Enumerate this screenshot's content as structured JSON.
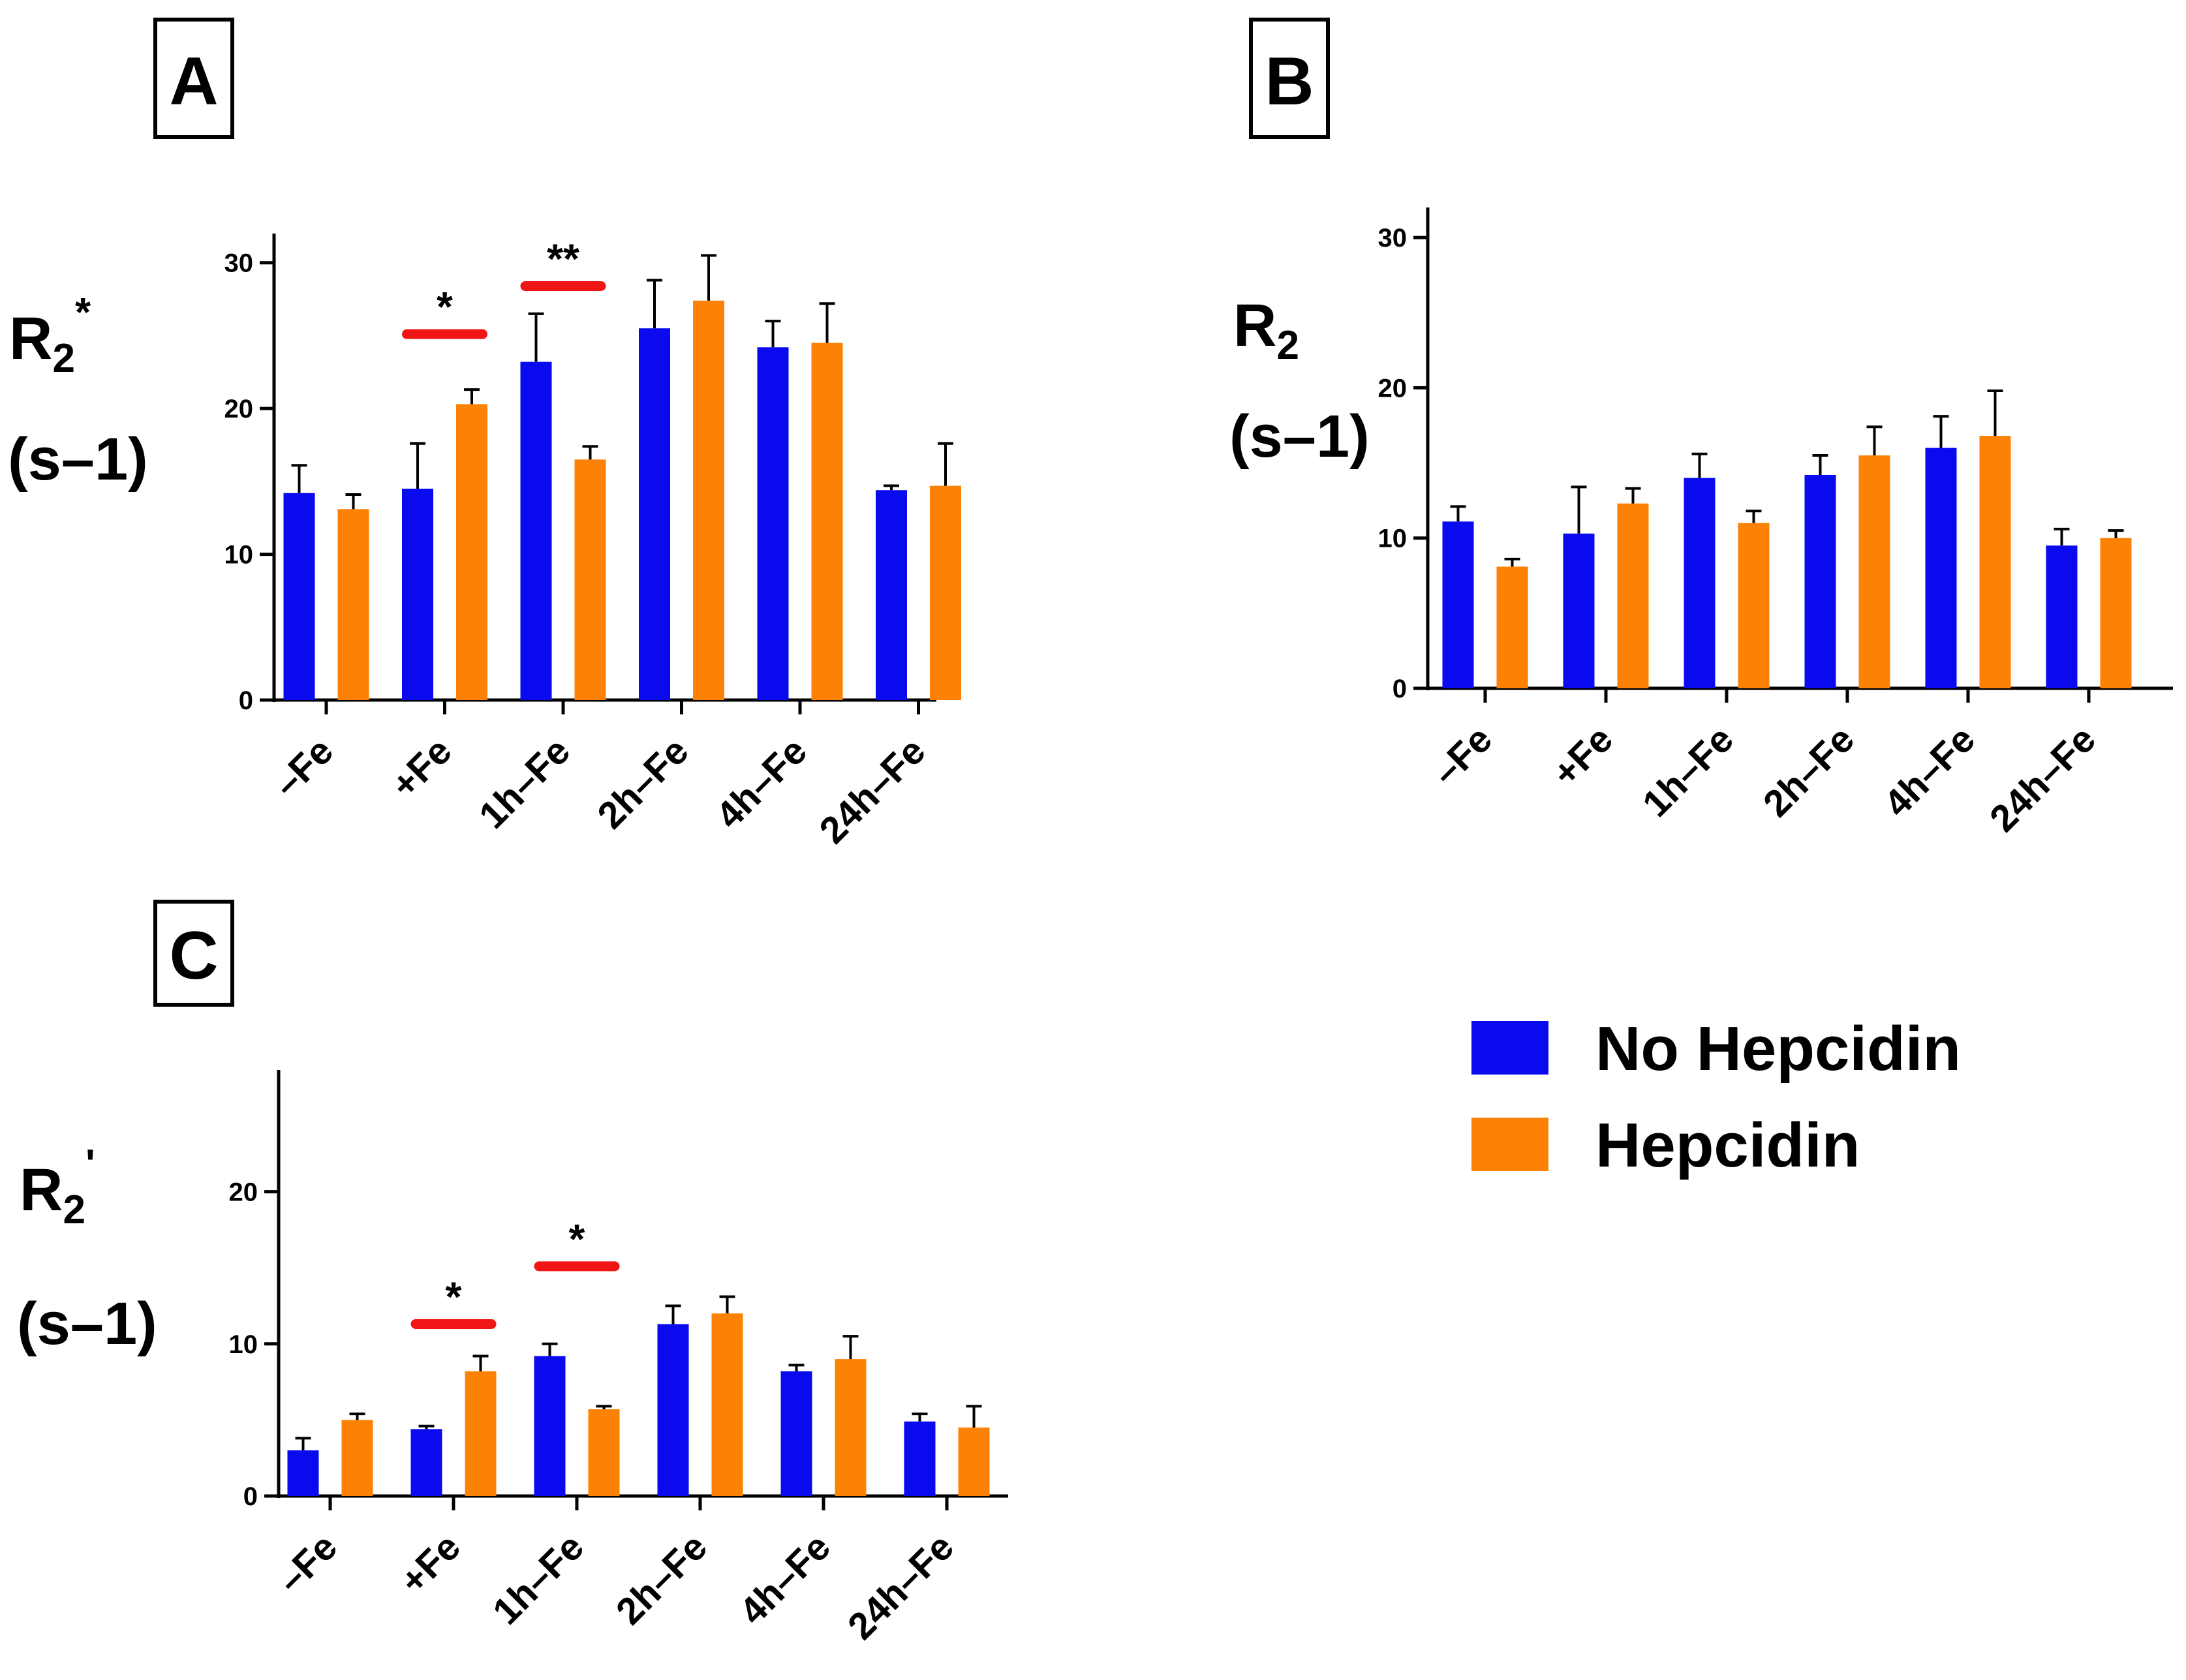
{
  "colors": {
    "no_hepcidin": "#0a0aef",
    "hepcidin": "#fc8205",
    "significance_bar": "#f01616",
    "axis": "#000000"
  },
  "legend": {
    "items": [
      {
        "label": "No Hepcidin",
        "color": "#0a0aef"
      },
      {
        "label": "Hepcidin",
        "color": "#fc8205"
      }
    ]
  },
  "chart_data": [
    {
      "panel": "A",
      "type": "bar",
      "ylabel_main": "R",
      "ylabel_sub": "2",
      "ylabel_sup": "*",
      "ylabel_unit": "(s–1)",
      "ylim": [
        0,
        32
      ],
      "yticks": [
        0,
        10,
        20,
        30
      ],
      "categories": [
        "–Fe",
        "+Fe",
        "1h–Fe",
        "2h–Fe",
        "4h–Fe",
        "24h–Fe"
      ],
      "series": [
        {
          "name": "No Hepcidin",
          "values": [
            14.2,
            14.5,
            23.2,
            25.5,
            24.2,
            14.4
          ],
          "errors": [
            1.9,
            3.1,
            3.3,
            3.3,
            1.8,
            0.3
          ]
        },
        {
          "name": "Hepcidin",
          "values": [
            13.1,
            20.3,
            16.5,
            27.4,
            24.5,
            14.7
          ],
          "errors": [
            1.0,
            1.0,
            0.9,
            3.1,
            2.7,
            2.9
          ]
        }
      ],
      "significance": [
        {
          "category_index": 1,
          "label": "*",
          "level": 25.1
        },
        {
          "category_index": 2,
          "label": "**",
          "level": 28.4
        }
      ]
    },
    {
      "panel": "B",
      "type": "bar",
      "ylabel_main": "R",
      "ylabel_sub": "2",
      "ylabel_sup": "",
      "ylabel_unit": "(s–1)",
      "ylim": [
        0,
        32
      ],
      "yticks": [
        0,
        10,
        20,
        30
      ],
      "categories": [
        "–Fe",
        "+Fe",
        "1h–Fe",
        "2h–Fe",
        "4h–Fe",
        "24h–Fe"
      ],
      "series": [
        {
          "name": "No Hepcidin",
          "values": [
            11.1,
            10.3,
            14.0,
            14.2,
            16.0,
            9.5
          ],
          "errors": [
            1.0,
            3.1,
            1.6,
            1.3,
            2.1,
            1.1
          ]
        },
        {
          "name": "Hepcidin",
          "values": [
            8.1,
            12.3,
            11.0,
            15.5,
            16.8,
            10.0
          ],
          "errors": [
            0.5,
            1.0,
            0.8,
            1.9,
            3.0,
            0.5
          ]
        }
      ],
      "significance": []
    },
    {
      "panel": "C",
      "type": "bar",
      "ylabel_main": "R",
      "ylabel_sub": "2",
      "ylabel_sup": "'",
      "ylabel_unit": "(s–1)",
      "ylim": [
        0,
        28
      ],
      "yticks": [
        0,
        10,
        20
      ],
      "categories": [
        "–Fe",
        "+Fe",
        "1h–Fe",
        "2h–Fe",
        "4h–Fe",
        "24h–Fe"
      ],
      "series": [
        {
          "name": "No Hepcidin",
          "values": [
            3.0,
            4.4,
            9.2,
            11.3,
            8.2,
            4.9
          ],
          "errors": [
            0.8,
            0.2,
            0.8,
            1.2,
            0.4,
            0.5
          ]
        },
        {
          "name": "Hepcidin",
          "values": [
            5.0,
            8.2,
            5.7,
            12.0,
            9.0,
            4.5
          ],
          "errors": [
            0.4,
            1.0,
            0.2,
            1.1,
            1.5,
            1.4
          ]
        }
      ],
      "significance": [
        {
          "category_index": 1,
          "label": "*",
          "level": 11.3
        },
        {
          "category_index": 2,
          "label": "*",
          "level": 15.1
        }
      ]
    }
  ]
}
